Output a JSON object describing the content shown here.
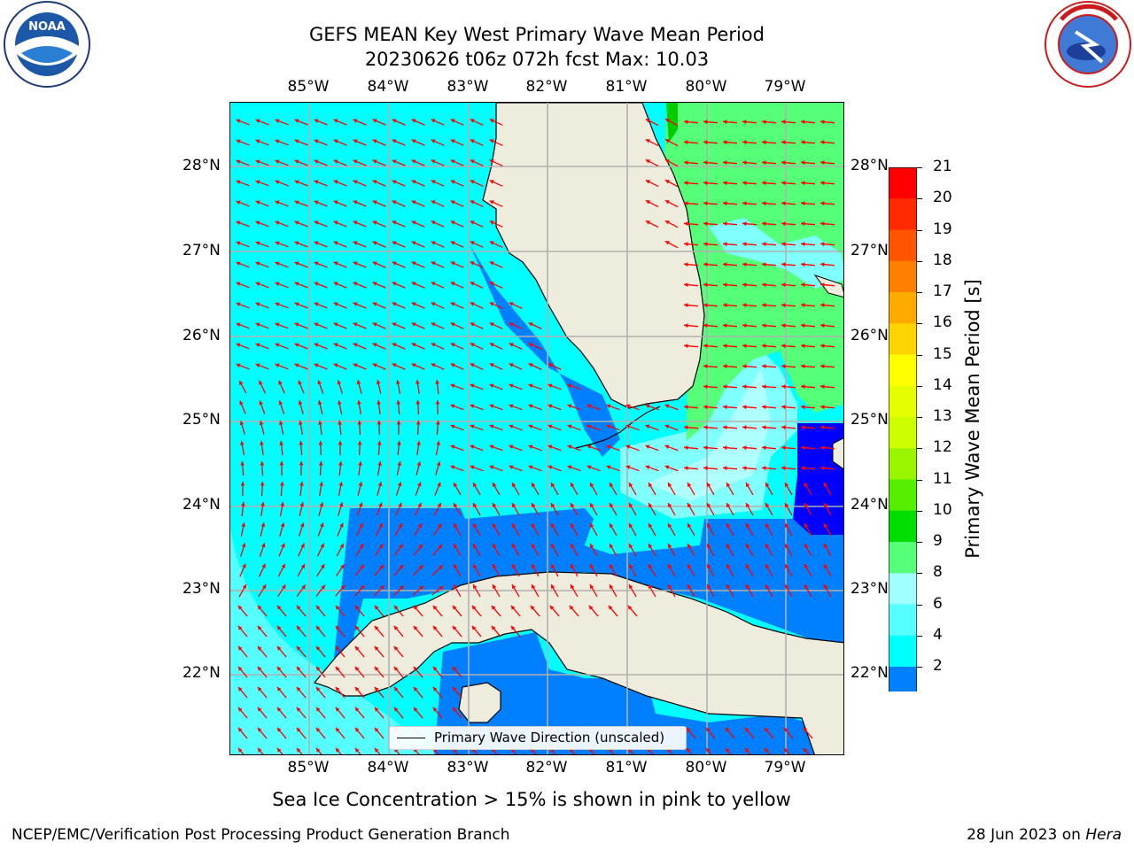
{
  "header": {
    "title_line1": "GEFS MEAN Key West Primary Wave Mean Period",
    "title_line2": "20230626 t06z 072h fcst   Max: 10.03"
  },
  "logos": {
    "left": {
      "name": "noaa-logo",
      "text": "NOAA",
      "ring_text": "NATIONAL OCEANIC AND ATMOSPHERIC ADMINISTRATION · U.S. DEPARTMENT OF COMMERCE"
    },
    "right": {
      "name": "nws-logo",
      "ring_text": "NATIONAL WEATHER SERVICE"
    }
  },
  "map": {
    "lon_labels": [
      "85°W",
      "84°W",
      "83°W",
      "82°W",
      "81°W",
      "80°W",
      "79°W"
    ],
    "lat_labels": [
      "28°N",
      "27°N",
      "26°N",
      "25°N",
      "24°N",
      "23°N",
      "22°N"
    ],
    "legend_text": "Primary Wave Direction (unscaled)",
    "colors": {
      "land": "#eeecdc",
      "cyan": "#00ffff",
      "blue": "#0080ff",
      "darkblue": "#0000ff",
      "lightcyan": "#80ffff",
      "palecyan": "#b0ffff",
      "green": "#55ff77",
      "grid": "#b0b0b0",
      "arrow": "#ff0000"
    }
  },
  "colorbar": {
    "label": "Primary Wave Mean Period [s]",
    "ticks": [
      "21",
      "20",
      "19",
      "18",
      "17",
      "16",
      "15",
      "14",
      "13",
      "12",
      "11",
      "10",
      "9",
      "8",
      "6",
      "4",
      "2"
    ],
    "colors_top_to_bottom": [
      "#ff0000",
      "#ff2a00",
      "#ff5500",
      "#ff7f00",
      "#ffaa00",
      "#ffd400",
      "#ffff00",
      "#e5ff00",
      "#ccff00",
      "#99f500",
      "#55ee00",
      "#00dd00",
      "#55ff77",
      "#a0ffff",
      "#55ffff",
      "#00ffff",
      "#0080ff"
    ],
    "extend_color": "#0000ff"
  },
  "chart_data": {
    "type": "heatmap",
    "title": "GEFS MEAN Key West Primary Wave Mean Period",
    "subtitle": "20230626 t06z 072h fcst   Max: 10.03",
    "lon_range": [
      "86.1°W",
      "78.4°W"
    ],
    "lat_range": [
      "21.0°N",
      "28.8°N"
    ],
    "colorbar_range": [
      2,
      21
    ],
    "colorbar_units": "s",
    "max_value": 10.03,
    "grid": true,
    "legend_placement": "bottom-center"
  },
  "caption": "Sea Ice Concentration > 15% is shown in pink to yellow",
  "footer": {
    "left": "NCEP/EMC/Verification Post Processing Product Generation Branch",
    "right_prefix": "28 Jun 2023 on ",
    "right_machine": "Hera"
  }
}
